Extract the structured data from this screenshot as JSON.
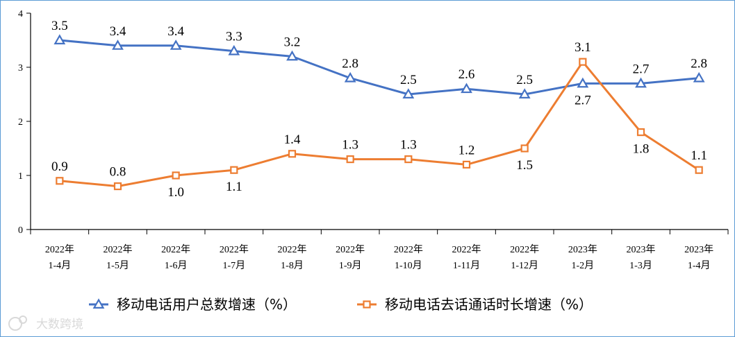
{
  "chart_data": {
    "type": "line",
    "categories": [
      [
        "2022年",
        "1-4月"
      ],
      [
        "2022年",
        "1-5月"
      ],
      [
        "2022年",
        "1-6月"
      ],
      [
        "2022年",
        "1-7月"
      ],
      [
        "2022年",
        "1-8月"
      ],
      [
        "2022年",
        "1-9月"
      ],
      [
        "2022年",
        "1-10月"
      ],
      [
        "2022年",
        "1-11月"
      ],
      [
        "2022年",
        "1-12月"
      ],
      [
        "2023年",
        "1-2月"
      ],
      [
        "2023年",
        "1-3月"
      ],
      [
        "2023年",
        "1-4月"
      ]
    ],
    "series": [
      {
        "name": "移动电话用户总数增速（%）",
        "color": "#4472c4",
        "marker": "triangle",
        "values": [
          3.5,
          3.4,
          3.4,
          3.3,
          3.2,
          2.8,
          2.5,
          2.6,
          2.5,
          2.7,
          2.7,
          2.8
        ],
        "labels": [
          "3.5",
          "3.4",
          "3.4",
          "3.3",
          "3.2",
          "2.8",
          "2.5",
          "2.6",
          "2.5",
          "2.7",
          "2.7",
          "2.8"
        ]
      },
      {
        "name": "移动电话去话通话时长增速（%）",
        "color": "#ed7d31",
        "marker": "square",
        "values": [
          0.9,
          0.8,
          1.0,
          1.1,
          1.4,
          1.3,
          1.3,
          1.2,
          1.5,
          3.1,
          1.8,
          1.1
        ],
        "labels": [
          "0.9",
          "0.8",
          "1.0",
          "1.1",
          "1.4",
          "1.3",
          "1.3",
          "1.2",
          "1.5",
          "3.1",
          "1.8",
          "1.1"
        ]
      }
    ],
    "ylim": [
      0,
      4
    ],
    "yticks": [
      "0",
      "1",
      "2",
      "3",
      "4"
    ],
    "grid": false,
    "legend_position": "bottom"
  },
  "watermark": {
    "text": "大数跨境"
  }
}
